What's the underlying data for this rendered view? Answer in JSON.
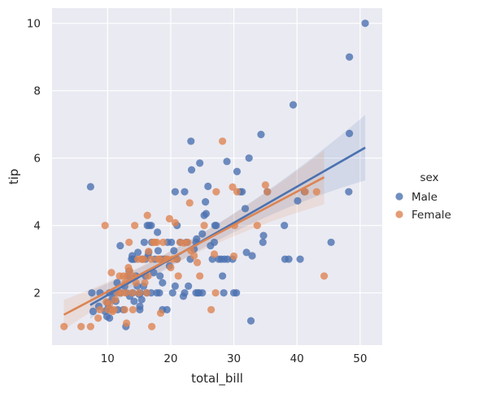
{
  "chart_data": {
    "type": "scatter",
    "xlabel": "total_bill",
    "ylabel": "tip",
    "xlim": [
      1.2,
      53.5
    ],
    "ylim": [
      0.45,
      10.45
    ],
    "xticks": [
      10,
      20,
      30,
      40,
      50
    ],
    "yticks": [
      2,
      4,
      6,
      8,
      10
    ],
    "grid": true,
    "legend": {
      "title": "sex",
      "placement": "right"
    },
    "series": [
      {
        "name": "Male",
        "color": "#4c72b0",
        "points": [
          [
            7.3,
            5.15
          ],
          [
            7.5,
            2.0
          ],
          [
            7.7,
            1.45
          ],
          [
            8.6,
            1.6
          ],
          [
            8.8,
            2.0
          ],
          [
            9.6,
            1.45
          ],
          [
            9.9,
            1.3
          ],
          [
            10.0,
            1.7
          ],
          [
            10.1,
            1.55
          ],
          [
            10.3,
            1.25
          ],
          [
            10.5,
            1.5
          ],
          [
            10.7,
            1.8
          ],
          [
            10.3,
            2.0
          ],
          [
            11.0,
            2.0
          ],
          [
            11.3,
            1.75
          ],
          [
            11.5,
            2.3
          ],
          [
            11.6,
            1.5
          ],
          [
            12.0,
            2.0
          ],
          [
            12.0,
            3.4
          ],
          [
            12.5,
            1.5
          ],
          [
            12.7,
            2.2
          ],
          [
            12.9,
            1.0
          ],
          [
            13.0,
            2.0
          ],
          [
            13.3,
            2.5
          ],
          [
            13.4,
            2.65
          ],
          [
            13.5,
            1.9
          ],
          [
            13.8,
            3.0
          ],
          [
            13.9,
            3.1
          ],
          [
            14.0,
            3.0
          ],
          [
            14.0,
            2.0
          ],
          [
            14.2,
            1.75
          ],
          [
            14.3,
            3.0
          ],
          [
            14.5,
            2.5
          ],
          [
            14.7,
            2.2
          ],
          [
            14.8,
            3.2
          ],
          [
            15.0,
            1.96
          ],
          [
            15.1,
            1.6
          ],
          [
            15.1,
            1.5
          ],
          [
            15.2,
            2.0
          ],
          [
            15.4,
            1.8
          ],
          [
            15.5,
            3.0
          ],
          [
            15.7,
            2.2
          ],
          [
            15.8,
            3.5
          ],
          [
            16.0,
            3.0
          ],
          [
            16.0,
            2.5
          ],
          [
            16.2,
            2.0
          ],
          [
            16.3,
            4.0
          ],
          [
            16.4,
            3.1
          ],
          [
            16.5,
            3.2
          ],
          [
            16.6,
            4.0
          ],
          [
            16.9,
            2.0
          ],
          [
            16.9,
            4.0
          ],
          [
            17.0,
            3.5
          ],
          [
            17.3,
            2.6
          ],
          [
            17.5,
            3.0
          ],
          [
            17.8,
            2.0
          ],
          [
            17.9,
            3.8
          ],
          [
            18.0,
            3.25
          ],
          [
            18.2,
            2.0
          ],
          [
            18.3,
            2.5
          ],
          [
            18.5,
            3.0
          ],
          [
            18.7,
            1.5
          ],
          [
            18.7,
            2.3
          ],
          [
            19.0,
            3.0
          ],
          [
            19.4,
            1.5
          ],
          [
            19.5,
            3.5
          ],
          [
            19.8,
            2.8
          ],
          [
            20.1,
            3.5
          ],
          [
            20.3,
            2.0
          ],
          [
            20.5,
            3.25
          ],
          [
            20.7,
            2.2
          ],
          [
            20.7,
            5.0
          ],
          [
            21.0,
            4.0
          ],
          [
            21.0,
            3.0
          ],
          [
            21.5,
            3.5
          ],
          [
            22.0,
            1.9
          ],
          [
            22.2,
            5.0
          ],
          [
            22.2,
            2.0
          ],
          [
            22.5,
            3.5
          ],
          [
            22.8,
            2.2
          ],
          [
            23.1,
            3.0
          ],
          [
            23.2,
            6.5
          ],
          [
            23.3,
            5.65
          ],
          [
            23.7,
            3.3
          ],
          [
            24.0,
            3.5
          ],
          [
            24.0,
            2.0
          ],
          [
            24.1,
            3.6
          ],
          [
            24.3,
            2.0
          ],
          [
            24.5,
            2.0
          ],
          [
            24.6,
            5.85
          ],
          [
            25.0,
            3.75
          ],
          [
            25.0,
            2.0
          ],
          [
            25.3,
            4.3
          ],
          [
            25.5,
            4.7
          ],
          [
            25.6,
            4.35
          ],
          [
            25.9,
            5.16
          ],
          [
            26.3,
            3.4
          ],
          [
            26.6,
            3.0
          ],
          [
            26.9,
            3.5
          ],
          [
            27.0,
            4.0
          ],
          [
            27.2,
            4.0
          ],
          [
            27.6,
            3.0
          ],
          [
            28.0,
            3.0
          ],
          [
            28.2,
            2.5
          ],
          [
            28.4,
            2.0
          ],
          [
            28.5,
            3.0
          ],
          [
            28.9,
            5.9
          ],
          [
            29.0,
            3.0
          ],
          [
            29.8,
            3.0
          ],
          [
            30.0,
            2.0
          ],
          [
            30.4,
            2.0
          ],
          [
            30.5,
            5.6
          ],
          [
            31.0,
            5.0
          ],
          [
            31.3,
            5.0
          ],
          [
            31.8,
            4.5
          ],
          [
            32.0,
            3.2
          ],
          [
            32.4,
            6.0
          ],
          [
            32.7,
            1.17
          ],
          [
            32.9,
            3.1
          ],
          [
            34.3,
            6.7
          ],
          [
            34.6,
            3.5
          ],
          [
            34.7,
            3.7
          ],
          [
            35.3,
            5.0
          ],
          [
            38.0,
            4.0
          ],
          [
            38.1,
            3.0
          ],
          [
            38.7,
            3.0
          ],
          [
            39.4,
            7.58
          ],
          [
            40.1,
            4.73
          ],
          [
            40.5,
            3.0
          ],
          [
            41.2,
            5.0
          ],
          [
            45.4,
            3.5
          ],
          [
            48.2,
            5.0
          ],
          [
            48.3,
            9.0
          ],
          [
            48.3,
            6.73
          ],
          [
            50.8,
            10.0
          ]
        ],
        "fit": {
          "x": [
            7.25,
            50.81
          ],
          "y": [
            1.64,
            6.31
          ]
        }
      },
      {
        "name": "Female",
        "color": "#dd8452",
        "points": [
          [
            3.1,
            1.0
          ],
          [
            5.8,
            1.0
          ],
          [
            7.3,
            1.0
          ],
          [
            8.5,
            1.25
          ],
          [
            8.8,
            1.5
          ],
          [
            9.6,
            4.0
          ],
          [
            9.8,
            1.73
          ],
          [
            10.1,
            1.5
          ],
          [
            10.3,
            1.67
          ],
          [
            10.6,
            2.6
          ],
          [
            10.8,
            1.45
          ],
          [
            11.0,
            1.5
          ],
          [
            11.2,
            1.8
          ],
          [
            11.6,
            2.0
          ],
          [
            11.9,
            2.5
          ],
          [
            12.2,
            2.0
          ],
          [
            12.5,
            2.5
          ],
          [
            12.7,
            1.5
          ],
          [
            12.8,
            2.3
          ],
          [
            12.9,
            2.0
          ],
          [
            13.0,
            1.1
          ],
          [
            13.1,
            2.5
          ],
          [
            13.3,
            2.75
          ],
          [
            13.4,
            3.5
          ],
          [
            13.5,
            2.65
          ],
          [
            13.9,
            2.0
          ],
          [
            14.0,
            1.5
          ],
          [
            14.1,
            2.5
          ],
          [
            14.3,
            4.0
          ],
          [
            14.5,
            2.3
          ],
          [
            14.8,
            3.0
          ],
          [
            15.0,
            2.0
          ],
          [
            15.4,
            3.0
          ],
          [
            15.7,
            3.0
          ],
          [
            15.9,
            2.3
          ],
          [
            16.2,
            2.0
          ],
          [
            16.3,
            4.3
          ],
          [
            16.4,
            2.5
          ],
          [
            16.5,
            3.23
          ],
          [
            16.9,
            3.0
          ],
          [
            17.0,
            1.0
          ],
          [
            17.2,
            3.5
          ],
          [
            17.5,
            3.5
          ],
          [
            17.8,
            3.5
          ],
          [
            18.0,
            3.0
          ],
          [
            18.3,
            3.0
          ],
          [
            18.4,
            1.4
          ],
          [
            18.8,
            3.5
          ],
          [
            19.3,
            3.0
          ],
          [
            19.5,
            3.0
          ],
          [
            19.8,
            4.2
          ],
          [
            20.0,
            2.75
          ],
          [
            20.3,
            3.0
          ],
          [
            20.7,
            4.08
          ],
          [
            21.0,
            3.0
          ],
          [
            21.2,
            2.5
          ],
          [
            21.5,
            3.5
          ],
          [
            22.1,
            3.48
          ],
          [
            22.7,
            3.5
          ],
          [
            23.0,
            4.67
          ],
          [
            23.2,
            3.25
          ],
          [
            23.7,
            3.1
          ],
          [
            24.2,
            2.9
          ],
          [
            24.6,
            2.5
          ],
          [
            25.3,
            4.0
          ],
          [
            26.4,
            1.5
          ],
          [
            26.9,
            3.15
          ],
          [
            27.1,
            2.0
          ],
          [
            27.2,
            5.0
          ],
          [
            28.2,
            6.5
          ],
          [
            29.8,
            5.14
          ],
          [
            30.0,
            3.09
          ],
          [
            30.1,
            4.0
          ],
          [
            30.5,
            5.0
          ],
          [
            33.7,
            4.0
          ],
          [
            35.0,
            5.2
          ],
          [
            35.3,
            5.0
          ],
          [
            41.3,
            5.0
          ],
          [
            43.1,
            5.0
          ],
          [
            44.3,
            2.5
          ]
        ],
        "fit": {
          "x": [
            3.07,
            44.3
          ],
          "y": [
            1.35,
            5.43
          ]
        }
      }
    ]
  }
}
